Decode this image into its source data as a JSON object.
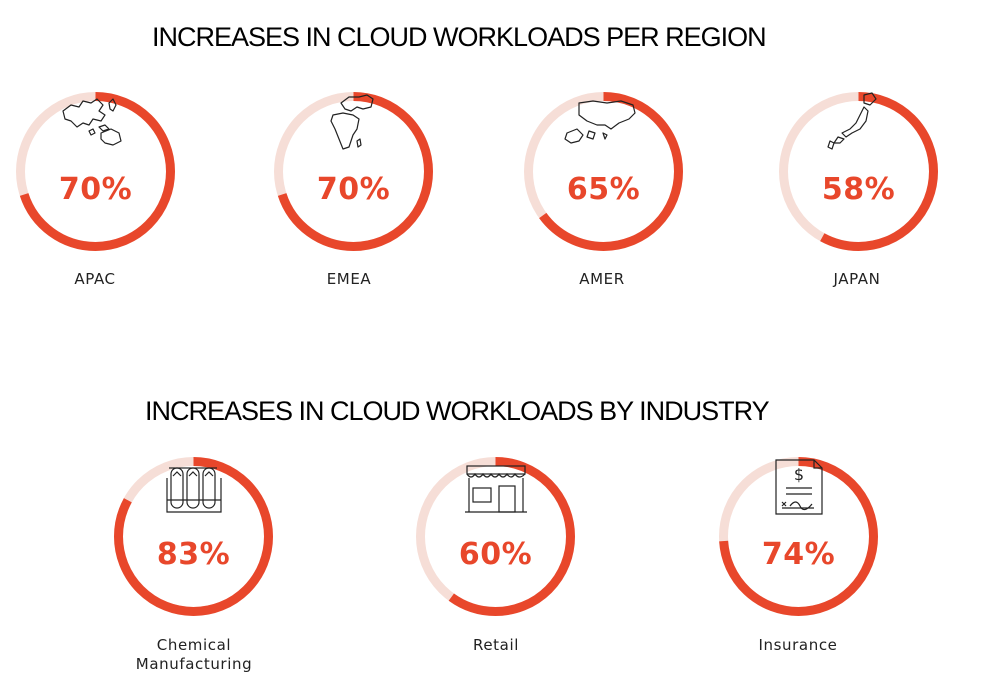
{
  "chart_data": [
    {
      "type": "donut",
      "title": "INCREASES IN CLOUD WORKLOADS PER REGION",
      "unit": "%",
      "categories": [
        "APAC",
        "EMEA",
        "AMER",
        "JAPAN"
      ],
      "values": [
        70,
        70,
        65,
        58
      ],
      "value_labels": [
        "70%",
        "70%",
        "65%",
        "58%"
      ],
      "icons": [
        "asia-pacific-map-icon",
        "emea-map-icon",
        "americas-map-icon",
        "japan-map-icon"
      ]
    },
    {
      "type": "donut",
      "title": "INCREASES IN CLOUD WORKLOADS BY INDUSTRY",
      "unit": "%",
      "categories": [
        "Chemical Manufacturing",
        "Retail",
        "Insurance"
      ],
      "label_lines": [
        [
          "Chemical",
          "Manufacturing"
        ],
        [
          "Retail"
        ],
        [
          "Insurance"
        ]
      ],
      "values": [
        83,
        60,
        74
      ],
      "value_labels": [
        "83%",
        "60%",
        "74%"
      ],
      "icons": [
        "test-tubes-icon",
        "storefront-icon",
        "insurance-document-icon"
      ]
    }
  ],
  "colors": {
    "accent": "#e8472b",
    "track": "#f6ded7",
    "text": "#222222"
  }
}
